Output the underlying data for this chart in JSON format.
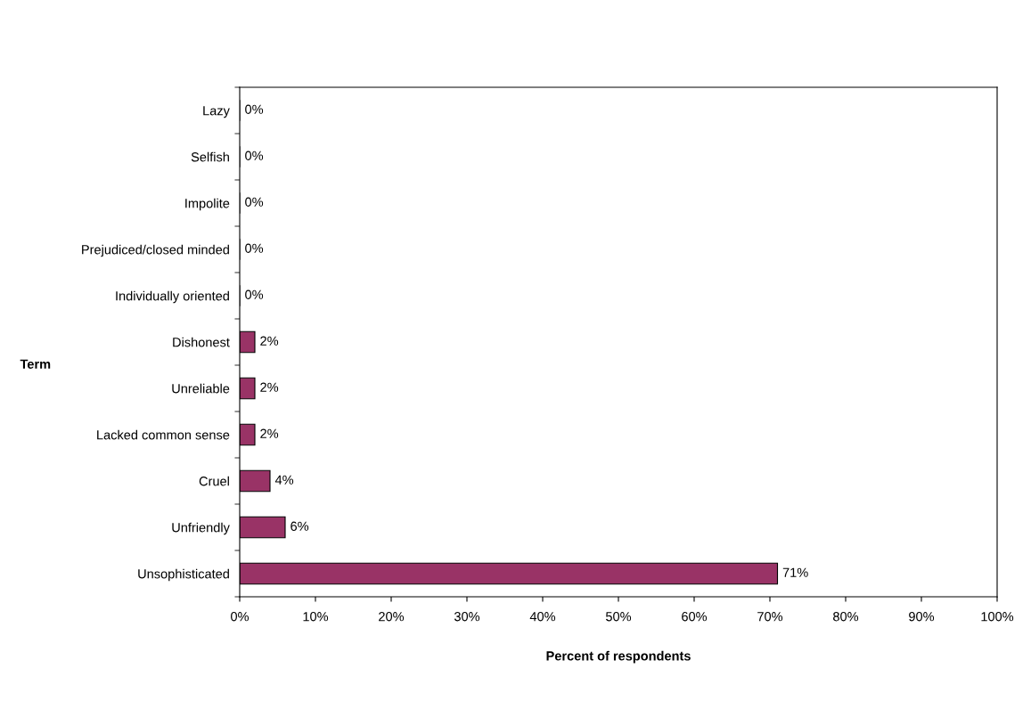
{
  "chart_data": {
    "type": "bar",
    "orientation": "horizontal",
    "xlabel": "Percent of respondents",
    "ylabel": "Term",
    "categories": [
      "Lazy",
      "Selfish",
      "Impolite",
      "Prejudiced/closed minded",
      "Individually oriented",
      "Dishonest",
      "Unreliable",
      "Lacked common sense",
      "Cruel",
      "Unfriendly",
      "Unsophisticated"
    ],
    "values": [
      0,
      0,
      0,
      0,
      0,
      2,
      2,
      2,
      4,
      6,
      71
    ],
    "value_labels": [
      "0%",
      "0%",
      "0%",
      "0%",
      "0%",
      "2%",
      "2%",
      "2%",
      "4%",
      "6%",
      "71%"
    ],
    "color": "#993366",
    "xlim": [
      0,
      100
    ],
    "xticks": [
      {
        "value": 0,
        "label": "0%"
      },
      {
        "value": 10,
        "label": "10%"
      },
      {
        "value": 20,
        "label": "20%"
      },
      {
        "value": 30,
        "label": "30%"
      },
      {
        "value": 40,
        "label": "40%"
      },
      {
        "value": 50,
        "label": "50%"
      },
      {
        "value": 60,
        "label": "60%"
      },
      {
        "value": 70,
        "label": "70%"
      },
      {
        "value": 80,
        "label": "80%"
      },
      {
        "value": 90,
        "label": "90%"
      },
      {
        "value": 100,
        "label": "100%"
      }
    ],
    "grid": false,
    "legend": false
  }
}
